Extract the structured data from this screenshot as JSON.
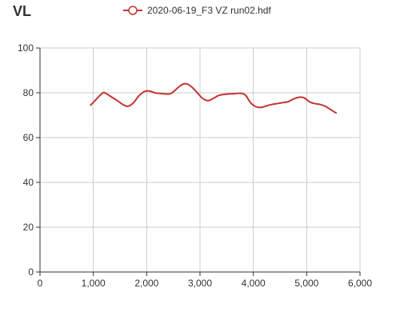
{
  "chart_data": {
    "type": "line",
    "title": "VL",
    "xlabel": "",
    "ylabel": "",
    "xlim": [
      0,
      6000
    ],
    "ylim": [
      0,
      100
    ],
    "x_ticks": [
      0,
      1000,
      2000,
      3000,
      4000,
      5000,
      6000
    ],
    "x_tick_labels": [
      "0",
      "1,000",
      "2,000",
      "3,000",
      "4,000",
      "5,000",
      "6,000"
    ],
    "y_ticks": [
      0,
      20,
      40,
      60,
      80,
      100
    ],
    "y_tick_labels": [
      "0",
      "20",
      "40",
      "60",
      "80",
      "100"
    ],
    "grid": true,
    "legend_position": "top",
    "series": [
      {
        "name": "2020-06-19_F3 VZ run02.hdf",
        "color": "#c23531",
        "x": [
          950,
          1050,
          1180,
          1250,
          1350,
          1450,
          1550,
          1650,
          1750,
          1850,
          1950,
          2050,
          2150,
          2250,
          2350,
          2450,
          2550,
          2650,
          2750,
          2850,
          2950,
          3050,
          3150,
          3250,
          3350,
          3450,
          3550,
          3650,
          3750,
          3850,
          3950,
          4050,
          4150,
          4250,
          4350,
          4450,
          4550,
          4650,
          4750,
          4850,
          4950,
          5050,
          5150,
          5250,
          5350,
          5450,
          5550
        ],
        "y": [
          74.5,
          77.0,
          80.0,
          79.5,
          78.0,
          76.5,
          74.8,
          74.0,
          75.5,
          78.5,
          80.5,
          80.8,
          80.0,
          79.7,
          79.5,
          79.6,
          81.5,
          83.5,
          84.0,
          82.5,
          80.0,
          77.5,
          76.5,
          77.5,
          78.8,
          79.3,
          79.5,
          79.6,
          79.8,
          79.0,
          75.5,
          73.8,
          73.5,
          74.2,
          74.8,
          75.2,
          75.6,
          76.0,
          77.2,
          78.0,
          77.8,
          76.0,
          75.2,
          74.8,
          74.0,
          72.5,
          71.0
        ]
      }
    ]
  }
}
